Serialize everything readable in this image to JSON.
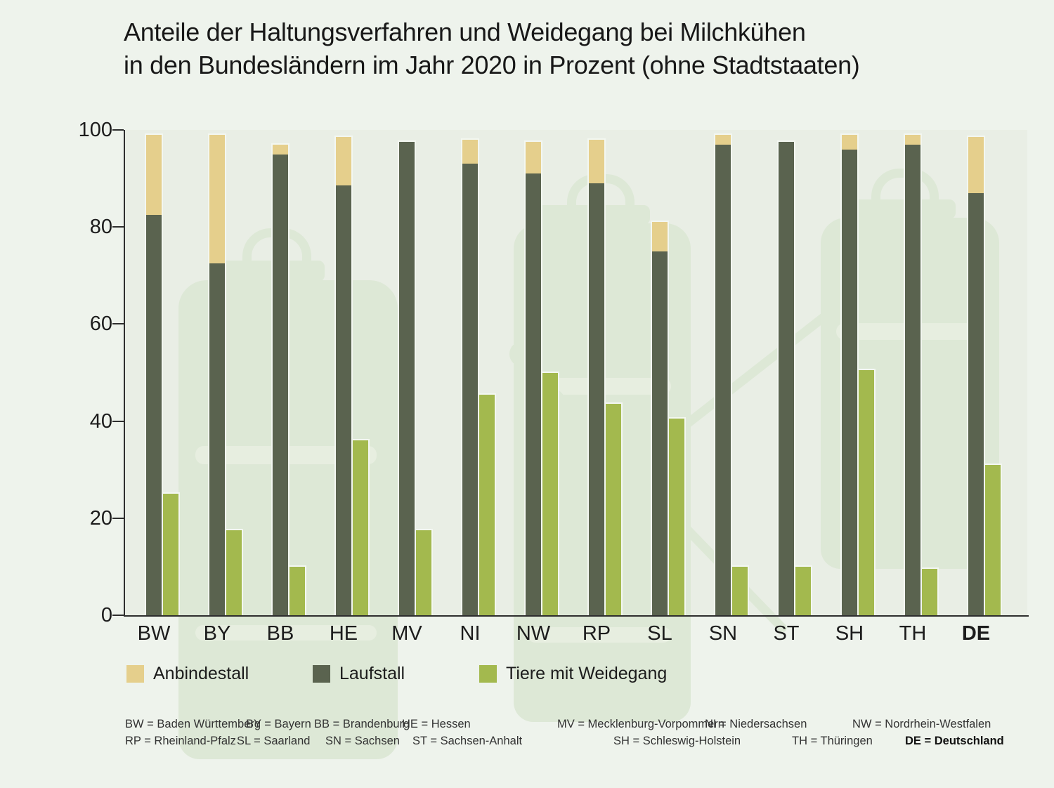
{
  "title": {
    "line1": "Anteile der Haltungsverfahren und Weidegang bei Milchkühen",
    "line2": "in den Bundesländern im Jahr 2020 in Prozent (ohne Stadtstaaten)"
  },
  "colors": {
    "anbindestall": "#e5cf8c",
    "laufstall": "#5a634f",
    "weidegang": "#a3b94e",
    "bar_outline": "#f3f7f1",
    "page_bg": "#eef3ec",
    "plot_bg": "#e9eee5",
    "watermark": "#dde8d6",
    "axis": "#2e2e2e"
  },
  "chart_data": {
    "type": "bar",
    "title": "Anteile der Haltungsverfahren und Weidegang bei Milchkühen in den Bundesländern im Jahr 2020 in Prozent (ohne Stadtstaaten)",
    "categories": [
      "BW",
      "BY",
      "BB",
      "HE",
      "MV",
      "NI",
      "NW",
      "RP",
      "SL",
      "SN",
      "ST",
      "SH",
      "TH",
      "DE"
    ],
    "series": [
      {
        "name": "Anbindestall",
        "stacked_with": "Laufstall",
        "values": [
          16.5,
          26.5,
          2,
          10,
          0,
          5,
          6.5,
          9,
          6,
          2,
          0,
          3,
          2,
          11.5
        ]
      },
      {
        "name": "Laufstall",
        "values": [
          82.5,
          72.5,
          95,
          88.5,
          97.5,
          93,
          91,
          89,
          75,
          97,
          97.5,
          96,
          97,
          87
        ]
      },
      {
        "name": "Tiere mit Weidegang",
        "stacked": false,
        "values": [
          25,
          17.5,
          10,
          36,
          17.5,
          45.5,
          50,
          43.5,
          40.5,
          10,
          10,
          50.5,
          9.5,
          31
        ]
      }
    ],
    "xlabel": "",
    "ylabel": "",
    "ylim": [
      0,
      100
    ],
    "yticks": [
      0,
      20,
      40,
      60,
      80,
      100
    ],
    "grid": false,
    "legend_position": "bottom",
    "bold_category": "DE"
  },
  "legend": [
    {
      "label": "Anbindestall",
      "color": "#e5cf8c"
    },
    {
      "label": "Laufstall",
      "color": "#5a634f"
    },
    {
      "label": "Tiere mit Weidegang",
      "color": "#a3b94e"
    }
  ],
  "footnotes": {
    "row1": [
      {
        "text": "BW = Baden Württemberg"
      },
      {
        "text": "BY = Bayern"
      },
      {
        "text": "BB = Brandenburg"
      },
      {
        "text": "HE = Hessen"
      },
      {
        "text": "MV = Mecklenburg-Vorpommern"
      },
      {
        "text": "NI = Niedersachsen"
      },
      {
        "text": "NW = Nordrhein-Westfalen"
      }
    ],
    "row2": [
      {
        "text": "RP = Rheinland-Pfalz"
      },
      {
        "text": "SL = Saarland"
      },
      {
        "text": "SN = Sachsen"
      },
      {
        "text": "ST = Sachsen-Anhalt"
      },
      {
        "text": "SH = Schleswig-Holstein"
      },
      {
        "text": "TH = Thüringen"
      },
      {
        "text": "DE = Deutschland",
        "bold": true
      }
    ]
  }
}
